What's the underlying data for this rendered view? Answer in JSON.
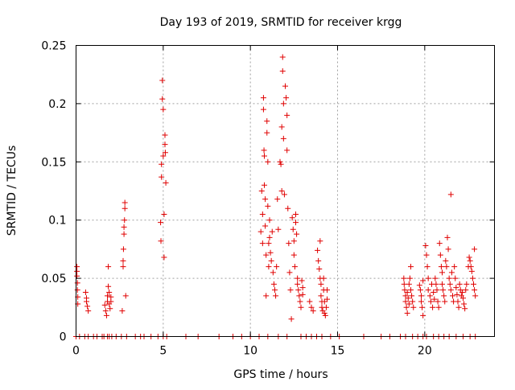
{
  "chart_data": {
    "type": "scatter",
    "title": "Day 193 of 2019, SRMTID for receiver krgg",
    "xlabel": "GPS time / hours",
    "ylabel": "SRMTID / TECUs",
    "xlim": [
      0,
      24
    ],
    "ylim": [
      0,
      0.25
    ],
    "xticks": [
      0,
      5,
      10,
      15,
      20
    ],
    "xtick_labels": [
      "0",
      "5",
      "10",
      "15",
      "20"
    ],
    "yticks": [
      0,
      0.05,
      0.1,
      0.15,
      0.2,
      0.25
    ],
    "ytick_labels": [
      "0",
      "0.05",
      "0.1",
      "0.15",
      "0.2",
      "0.25"
    ],
    "grid": true,
    "marker": "+",
    "color": "#e00000",
    "series": [
      {
        "name": "SRMTID",
        "points": [
          [
            0.05,
            0.06
          ],
          [
            0.05,
            0.056
          ],
          [
            0.05,
            0.052
          ],
          [
            0.08,
            0.046
          ],
          [
            0.08,
            0.04
          ],
          [
            0.1,
            0.034
          ],
          [
            0.1,
            0.028
          ],
          [
            0.0,
            0.0
          ],
          [
            0.55,
            0.038
          ],
          [
            0.6,
            0.033
          ],
          [
            0.6,
            0.03
          ],
          [
            0.65,
            0.026
          ],
          [
            0.7,
            0.022
          ],
          [
            0.5,
            0.0
          ],
          [
            0.7,
            0.0
          ],
          [
            1.65,
            0.027
          ],
          [
            1.7,
            0.022
          ],
          [
            1.75,
            0.018
          ],
          [
            1.8,
            0.03
          ],
          [
            1.8,
            0.035
          ],
          [
            1.85,
            0.043
          ],
          [
            1.85,
            0.06
          ],
          [
            1.9,
            0.038
          ],
          [
            1.9,
            0.028
          ],
          [
            1.95,
            0.024
          ],
          [
            2.0,
            0.034
          ],
          [
            2.0,
            0.03
          ],
          [
            1.6,
            0.0
          ],
          [
            1.8,
            0.0
          ],
          [
            1.9,
            0.0
          ],
          [
            2.05,
            0.0
          ],
          [
            1.5,
            0.0
          ],
          [
            2.65,
            0.022
          ],
          [
            2.7,
            0.06
          ],
          [
            2.7,
            0.065
          ],
          [
            2.72,
            0.075
          ],
          [
            2.75,
            0.088
          ],
          [
            2.75,
            0.094
          ],
          [
            2.78,
            0.1
          ],
          [
            2.8,
            0.11
          ],
          [
            2.8,
            0.115
          ],
          [
            2.85,
            0.035
          ],
          [
            2.6,
            0.0
          ],
          [
            2.9,
            0.0
          ],
          [
            4.85,
            0.098
          ],
          [
            4.87,
            0.082
          ],
          [
            4.9,
            0.148
          ],
          [
            4.9,
            0.137
          ],
          [
            4.95,
            0.22
          ],
          [
            4.95,
            0.204
          ],
          [
            5.0,
            0.195
          ],
          [
            5.0,
            0.155
          ],
          [
            5.05,
            0.105
          ],
          [
            5.05,
            0.068
          ],
          [
            5.1,
            0.173
          ],
          [
            5.1,
            0.165
          ],
          [
            5.12,
            0.158
          ],
          [
            5.15,
            0.132
          ],
          [
            5.0,
            0.0
          ],
          [
            4.7,
            0.0
          ],
          [
            5.2,
            0.0
          ],
          [
            10.6,
            0.09
          ],
          [
            10.65,
            0.125
          ],
          [
            10.7,
            0.08
          ],
          [
            10.7,
            0.105
          ],
          [
            10.75,
            0.205
          ],
          [
            10.75,
            0.195
          ],
          [
            10.78,
            0.16
          ],
          [
            10.8,
            0.155
          ],
          [
            10.8,
            0.13
          ],
          [
            10.85,
            0.118
          ],
          [
            10.85,
            0.095
          ],
          [
            10.9,
            0.07
          ],
          [
            10.9,
            0.035
          ],
          [
            10.95,
            0.185
          ],
          [
            10.95,
            0.175
          ],
          [
            11.0,
            0.15
          ],
          [
            11.0,
            0.112
          ],
          [
            11.05,
            0.08
          ],
          [
            11.05,
            0.06
          ],
          [
            11.1,
            0.1
          ],
          [
            11.1,
            0.085
          ],
          [
            11.15,
            0.072
          ],
          [
            11.2,
            0.065
          ],
          [
            11.25,
            0.09
          ],
          [
            11.3,
            0.055
          ],
          [
            11.35,
            0.045
          ],
          [
            11.4,
            0.04
          ],
          [
            11.45,
            0.035
          ],
          [
            11.5,
            0.06
          ],
          [
            11.55,
            0.118
          ],
          [
            11.6,
            0.092
          ],
          [
            11.7,
            0.15
          ],
          [
            11.75,
            0.148
          ],
          [
            11.8,
            0.18
          ],
          [
            11.8,
            0.125
          ],
          [
            11.85,
            0.24
          ],
          [
            11.85,
            0.228
          ],
          [
            11.9,
            0.2
          ],
          [
            11.9,
            0.17
          ],
          [
            11.95,
            0.122
          ],
          [
            12.0,
            0.215
          ],
          [
            12.05,
            0.205
          ],
          [
            12.1,
            0.19
          ],
          [
            12.1,
            0.16
          ],
          [
            12.15,
            0.11
          ],
          [
            12.2,
            0.08
          ],
          [
            12.25,
            0.055
          ],
          [
            12.3,
            0.04
          ],
          [
            12.35,
            0.015
          ],
          [
            12.4,
            0.102
          ],
          [
            12.45,
            0.092
          ],
          [
            12.5,
            0.082
          ],
          [
            12.5,
            0.07
          ],
          [
            12.55,
            0.06
          ],
          [
            12.6,
            0.105
          ],
          [
            12.6,
            0.098
          ],
          [
            12.65,
            0.088
          ],
          [
            12.7,
            0.05
          ],
          [
            12.7,
            0.045
          ],
          [
            12.75,
            0.04
          ],
          [
            12.8,
            0.035
          ],
          [
            12.85,
            0.03
          ],
          [
            12.9,
            0.025
          ],
          [
            12.95,
            0.048
          ],
          [
            13.0,
            0.042
          ],
          [
            13.0,
            0.036
          ],
          [
            13.4,
            0.03
          ],
          [
            13.5,
            0.025
          ],
          [
            13.6,
            0.022
          ],
          [
            13.85,
            0.074
          ],
          [
            13.9,
            0.065
          ],
          [
            13.95,
            0.058
          ],
          [
            14.0,
            0.082
          ],
          [
            14.0,
            0.05
          ],
          [
            14.05,
            0.045
          ],
          [
            14.05,
            0.035
          ],
          [
            14.1,
            0.03
          ],
          [
            14.1,
            0.025
          ],
          [
            14.15,
            0.022
          ],
          [
            14.2,
            0.05
          ],
          [
            14.2,
            0.04
          ],
          [
            14.25,
            0.03
          ],
          [
            14.25,
            0.02
          ],
          [
            14.3,
            0.018
          ],
          [
            14.35,
            0.025
          ],
          [
            14.4,
            0.032
          ],
          [
            14.4,
            0.04
          ],
          [
            10.0,
            0.0
          ],
          [
            10.5,
            0.0
          ],
          [
            11.0,
            0.0
          ],
          [
            11.6,
            0.0
          ],
          [
            12.1,
            0.0
          ],
          [
            12.9,
            0.0
          ],
          [
            13.2,
            0.0
          ],
          [
            13.5,
            0.0
          ],
          [
            13.8,
            0.0
          ],
          [
            14.1,
            0.0
          ],
          [
            14.6,
            0.0
          ],
          [
            15.1,
            0.0
          ],
          [
            16.5,
            0.0
          ],
          [
            6.3,
            0.0
          ],
          [
            7.0,
            0.0
          ],
          [
            8.2,
            0.0
          ],
          [
            9.0,
            0.0
          ],
          [
            9.5,
            0.0
          ],
          [
            3.4,
            0.0
          ],
          [
            3.7,
            0.0
          ],
          [
            3.9,
            0.0
          ],
          [
            4.3,
            0.0
          ],
          [
            0.2,
            0.0
          ],
          [
            1.0,
            0.0
          ],
          [
            1.2,
            0.0
          ],
          [
            2.3,
            0.0
          ],
          [
            18.8,
            0.05
          ],
          [
            18.82,
            0.045
          ],
          [
            18.85,
            0.04
          ],
          [
            18.9,
            0.035
          ],
          [
            18.9,
            0.03
          ],
          [
            18.95,
            0.025
          ],
          [
            19.0,
            0.02
          ],
          [
            19.0,
            0.038
          ],
          [
            19.05,
            0.033
          ],
          [
            19.1,
            0.028
          ],
          [
            19.1,
            0.045
          ],
          [
            19.15,
            0.05
          ],
          [
            19.2,
            0.06
          ],
          [
            19.2,
            0.04
          ],
          [
            19.25,
            0.035
          ],
          [
            19.3,
            0.03
          ],
          [
            19.35,
            0.025
          ],
          [
            19.7,
            0.044
          ],
          [
            19.75,
            0.04
          ],
          [
            19.8,
            0.035
          ],
          [
            19.8,
            0.03
          ],
          [
            19.85,
            0.025
          ],
          [
            19.9,
            0.048
          ],
          [
            19.9,
            0.018
          ],
          [
            20.05,
            0.078
          ],
          [
            20.1,
            0.07
          ],
          [
            20.15,
            0.06
          ],
          [
            20.2,
            0.05
          ],
          [
            20.2,
            0.04
          ],
          [
            20.3,
            0.035
          ],
          [
            20.35,
            0.03
          ],
          [
            20.4,
            0.045
          ],
          [
            20.45,
            0.025
          ],
          [
            20.5,
            0.038
          ],
          [
            20.55,
            0.032
          ],
          [
            20.6,
            0.05
          ],
          [
            20.65,
            0.045
          ],
          [
            20.7,
            0.04
          ],
          [
            20.75,
            0.03
          ],
          [
            20.8,
            0.025
          ],
          [
            20.85,
            0.08
          ],
          [
            20.9,
            0.07
          ],
          [
            20.95,
            0.06
          ],
          [
            21.0,
            0.055
          ],
          [
            21.0,
            0.045
          ],
          [
            21.05,
            0.04
          ],
          [
            21.1,
            0.035
          ],
          [
            21.15,
            0.03
          ],
          [
            21.2,
            0.065
          ],
          [
            21.25,
            0.06
          ],
          [
            21.3,
            0.085
          ],
          [
            21.35,
            0.075
          ],
          [
            21.4,
            0.05
          ],
          [
            21.45,
            0.045
          ],
          [
            21.5,
            0.122
          ],
          [
            21.5,
            0.04
          ],
          [
            21.55,
            0.055
          ],
          [
            21.6,
            0.035
          ],
          [
            21.65,
            0.03
          ],
          [
            21.7,
            0.06
          ],
          [
            21.75,
            0.05
          ],
          [
            21.8,
            0.042
          ],
          [
            21.85,
            0.036
          ],
          [
            21.9,
            0.03
          ],
          [
            21.95,
            0.025
          ],
          [
            22.0,
            0.045
          ],
          [
            22.05,
            0.04
          ],
          [
            22.1,
            0.035
          ],
          [
            22.15,
            0.038
          ],
          [
            22.2,
            0.033
          ],
          [
            22.25,
            0.028
          ],
          [
            22.3,
            0.024
          ],
          [
            22.35,
            0.04
          ],
          [
            22.4,
            0.045
          ],
          [
            22.5,
            0.06
          ],
          [
            22.55,
            0.068
          ],
          [
            22.6,
            0.065
          ],
          [
            22.65,
            0.06
          ],
          [
            22.7,
            0.056
          ],
          [
            22.75,
            0.05
          ],
          [
            22.8,
            0.045
          ],
          [
            22.85,
            0.075
          ],
          [
            22.85,
            0.04
          ],
          [
            22.9,
            0.035
          ],
          [
            17.5,
            0.0
          ],
          [
            18.0,
            0.0
          ],
          [
            18.6,
            0.0
          ],
          [
            18.9,
            0.0
          ],
          [
            19.3,
            0.0
          ],
          [
            19.6,
            0.0
          ],
          [
            19.9,
            0.0
          ],
          [
            20.1,
            0.0
          ],
          [
            20.5,
            0.0
          ],
          [
            20.8,
            0.0
          ],
          [
            21.1,
            0.0
          ],
          [
            21.4,
            0.0
          ],
          [
            21.8,
            0.0
          ],
          [
            22.2,
            0.0
          ],
          [
            22.6,
            0.0
          ],
          [
            22.9,
            0.0
          ]
        ]
      }
    ]
  }
}
